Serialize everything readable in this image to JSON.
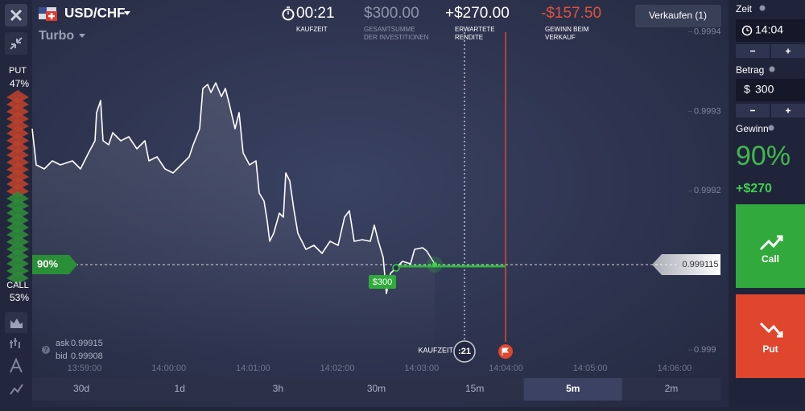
{
  "header": {
    "pair": "USD/CHF",
    "mode": "Turbo",
    "timer": "00:21",
    "timer_label": [
      "KAUFZEIT"
    ],
    "investment": "$300.00",
    "investment_label": [
      "GESAMTSUMME",
      "DER INVESTITIONEN"
    ],
    "expected": "+$270.00",
    "expected_label": [
      "ERWARTETE",
      "RENDITE"
    ],
    "sell_value": "-$157.50",
    "sell_label": [
      "GEWINN BEIM",
      "VERKAUF"
    ],
    "sell_button": "Verkaufen (1)"
  },
  "sidebar": {
    "put_label": "PUT",
    "put_pct": "47%",
    "call_label": "CALL",
    "call_pct": "53%"
  },
  "chart": {
    "ylim": [
      0.99899,
      0.99944
    ],
    "yticks": [
      0.999,
      0.9992,
      0.9993,
      0.9994
    ],
    "xticks": [
      "13:59:00",
      "14:00:00",
      "14:01:00",
      "14:02:00",
      "14:03:00",
      "14:04:00",
      "14:05:00",
      "14:06:00"
    ],
    "current_price": "0.999115",
    "payout_marker": "90%",
    "trade_tag": "$300",
    "purchase_label": "KAUFZEIT",
    "purchase_timer": ":21",
    "ask_label": "ask",
    "ask": "0.99915",
    "bid_label": "bid",
    "bid": "0.99908"
  },
  "timeframes": {
    "items": [
      "30d",
      "1d",
      "3h",
      "30m",
      "15m",
      "5m",
      "2m"
    ],
    "selected": 5
  },
  "panel": {
    "time_label": "Zeit",
    "time_value": "14:04",
    "amount_label": "Betrag",
    "amount_currency": "$",
    "amount_value": "300",
    "profit_label": "Gewinn",
    "profit_pct": "90%",
    "profit_amount": "+$270",
    "call": "Call",
    "put": "Put"
  }
}
